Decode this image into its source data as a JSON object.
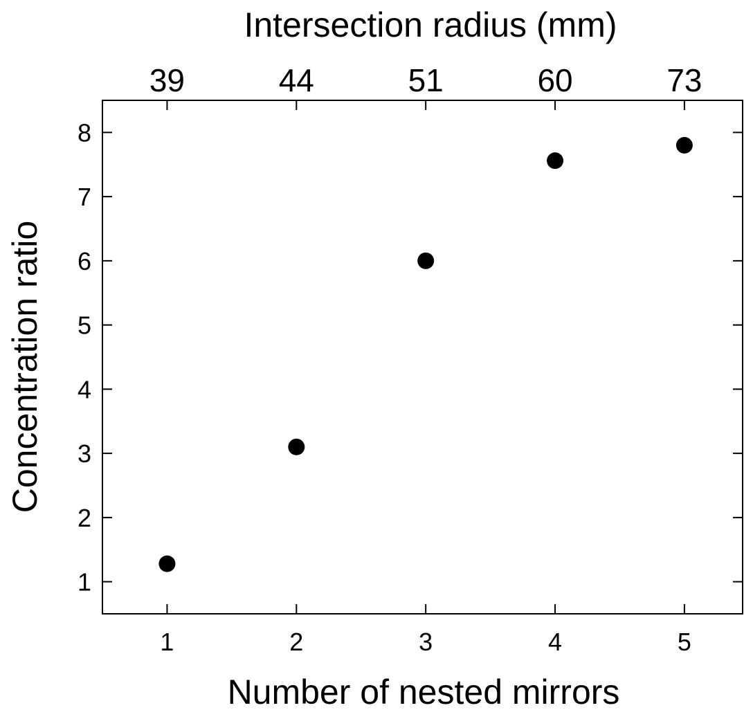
{
  "chart_data": {
    "type": "scatter",
    "title": "",
    "xlabel": "Number of nested mirrors",
    "ylabel": "Concentration ratio",
    "x2label": "Intersection radius (mm)",
    "xlim": [
      0.5,
      5.45
    ],
    "ylim": [
      0.5,
      8.5
    ],
    "xticks": [
      1,
      2,
      3,
      4,
      5
    ],
    "xtick_labels": [
      "1",
      "2",
      "3",
      "4",
      "5"
    ],
    "x2tick_labels": [
      "39",
      "44",
      "51",
      "60",
      "73"
    ],
    "yticks": [
      1,
      2,
      3,
      4,
      5,
      6,
      7,
      8
    ],
    "ytick_labels": [
      "1",
      "2",
      "3",
      "4",
      "5",
      "6",
      "7",
      "8"
    ],
    "grid": false,
    "marker_color": "#000000",
    "series": [
      {
        "x": [
          1,
          2,
          3,
          4,
          5
        ],
        "y": [
          1.28,
          3.1,
          6.0,
          7.56,
          7.8
        ]
      }
    ]
  }
}
